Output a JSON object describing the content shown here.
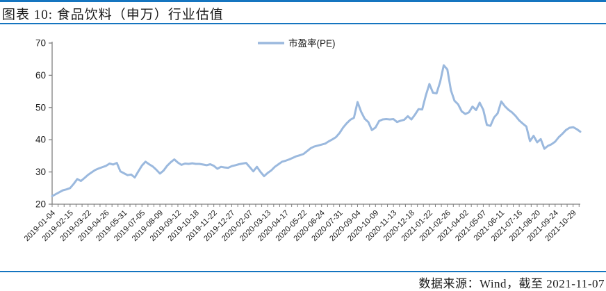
{
  "page": {
    "title": "图表 10:  食品饮料（申万）行业估值",
    "footer": "数据来源：Wind，截至 2021-11-07"
  },
  "colors": {
    "accent_blue": "#1575C0",
    "line_blue": "#9BB9DE",
    "axis_gray": "#808080",
    "text_dark": "#1a1a1a"
  },
  "chart_data": {
    "type": "line",
    "title": "",
    "legend": [
      "市盈率(PE)"
    ],
    "legend_position": "top-center",
    "grid": false,
    "ylim": [
      20,
      70
    ],
    "yticks": [
      20,
      30,
      40,
      50,
      60,
      70
    ],
    "label_every": 5,
    "x_labels": [
      "2019-01-04",
      "2019-02-15",
      "2019-03-22",
      "2019-04-26",
      "2019-05-31",
      "2019-07-05",
      "2019-08-09",
      "2019-09-12",
      "2019-10-18",
      "2019-11-22",
      "2019-12-27",
      "2020-02-07",
      "2020-03-13",
      "2020-04-17",
      "2020-05-22",
      "2020-06-24",
      "2020-07-31",
      "2020-09-04",
      "2020-10-09",
      "2020-11-13",
      "2020-12-18",
      "2021-01-22",
      "2021-02-26",
      "2021-04-02",
      "2021-05-07",
      "2021-06-11",
      "2021-07-16",
      "2021-08-20",
      "2021-09-24",
      "2021-10-29"
    ],
    "series": [
      {
        "name": "市盈率(PE)",
        "values": [
          22.5,
          23.1,
          23.7,
          24.3,
          24.6,
          25.0,
          26.3,
          27.8,
          27.2,
          28.1,
          29.1,
          29.9,
          30.6,
          31.1,
          31.5,
          31.9,
          32.6,
          32.3,
          32.8,
          30.2,
          29.6,
          29.0,
          29.2,
          28.3,
          30.2,
          32.0,
          33.2,
          32.4,
          31.7,
          30.7,
          29.5,
          30.4,
          31.9,
          33.0,
          33.9,
          32.9,
          32.2,
          32.6,
          32.5,
          32.7,
          32.5,
          32.5,
          32.3,
          32.1,
          32.4,
          31.9,
          31.0,
          31.6,
          31.4,
          31.3,
          31.8,
          32.1,
          32.4,
          32.6,
          32.8,
          31.5,
          30.2,
          31.6,
          30.0,
          28.7,
          29.7,
          30.5,
          31.6,
          32.4,
          33.2,
          33.5,
          33.9,
          34.4,
          34.9,
          35.2,
          35.6,
          36.5,
          37.4,
          37.9,
          38.2,
          38.5,
          38.8,
          39.5,
          40.1,
          40.8,
          42.1,
          43.8,
          45.1,
          46.2,
          46.8,
          51.7,
          48.7,
          46.5,
          45.5,
          43.0,
          43.8,
          45.8,
          46.3,
          46.4,
          46.3,
          46.4,
          45.5,
          45.9,
          46.2,
          47.3,
          46.3,
          47.8,
          49.5,
          49.4,
          53.7,
          57.3,
          54.6,
          54.4,
          58.0,
          63.1,
          61.8,
          55.3,
          52.1,
          51.0,
          48.8,
          48.0,
          48.5,
          50.3,
          49.2,
          51.5,
          49.3,
          44.6,
          44.3,
          46.9,
          48.2,
          51.9,
          50.4,
          49.3,
          48.5,
          47.4,
          46.0,
          45.0,
          44.1,
          39.6,
          41.2,
          39.2,
          40.2,
          37.2,
          38.1,
          38.6,
          39.4,
          40.8,
          41.8,
          43.0,
          43.7,
          43.9,
          43.3,
          42.5
        ]
      }
    ]
  }
}
